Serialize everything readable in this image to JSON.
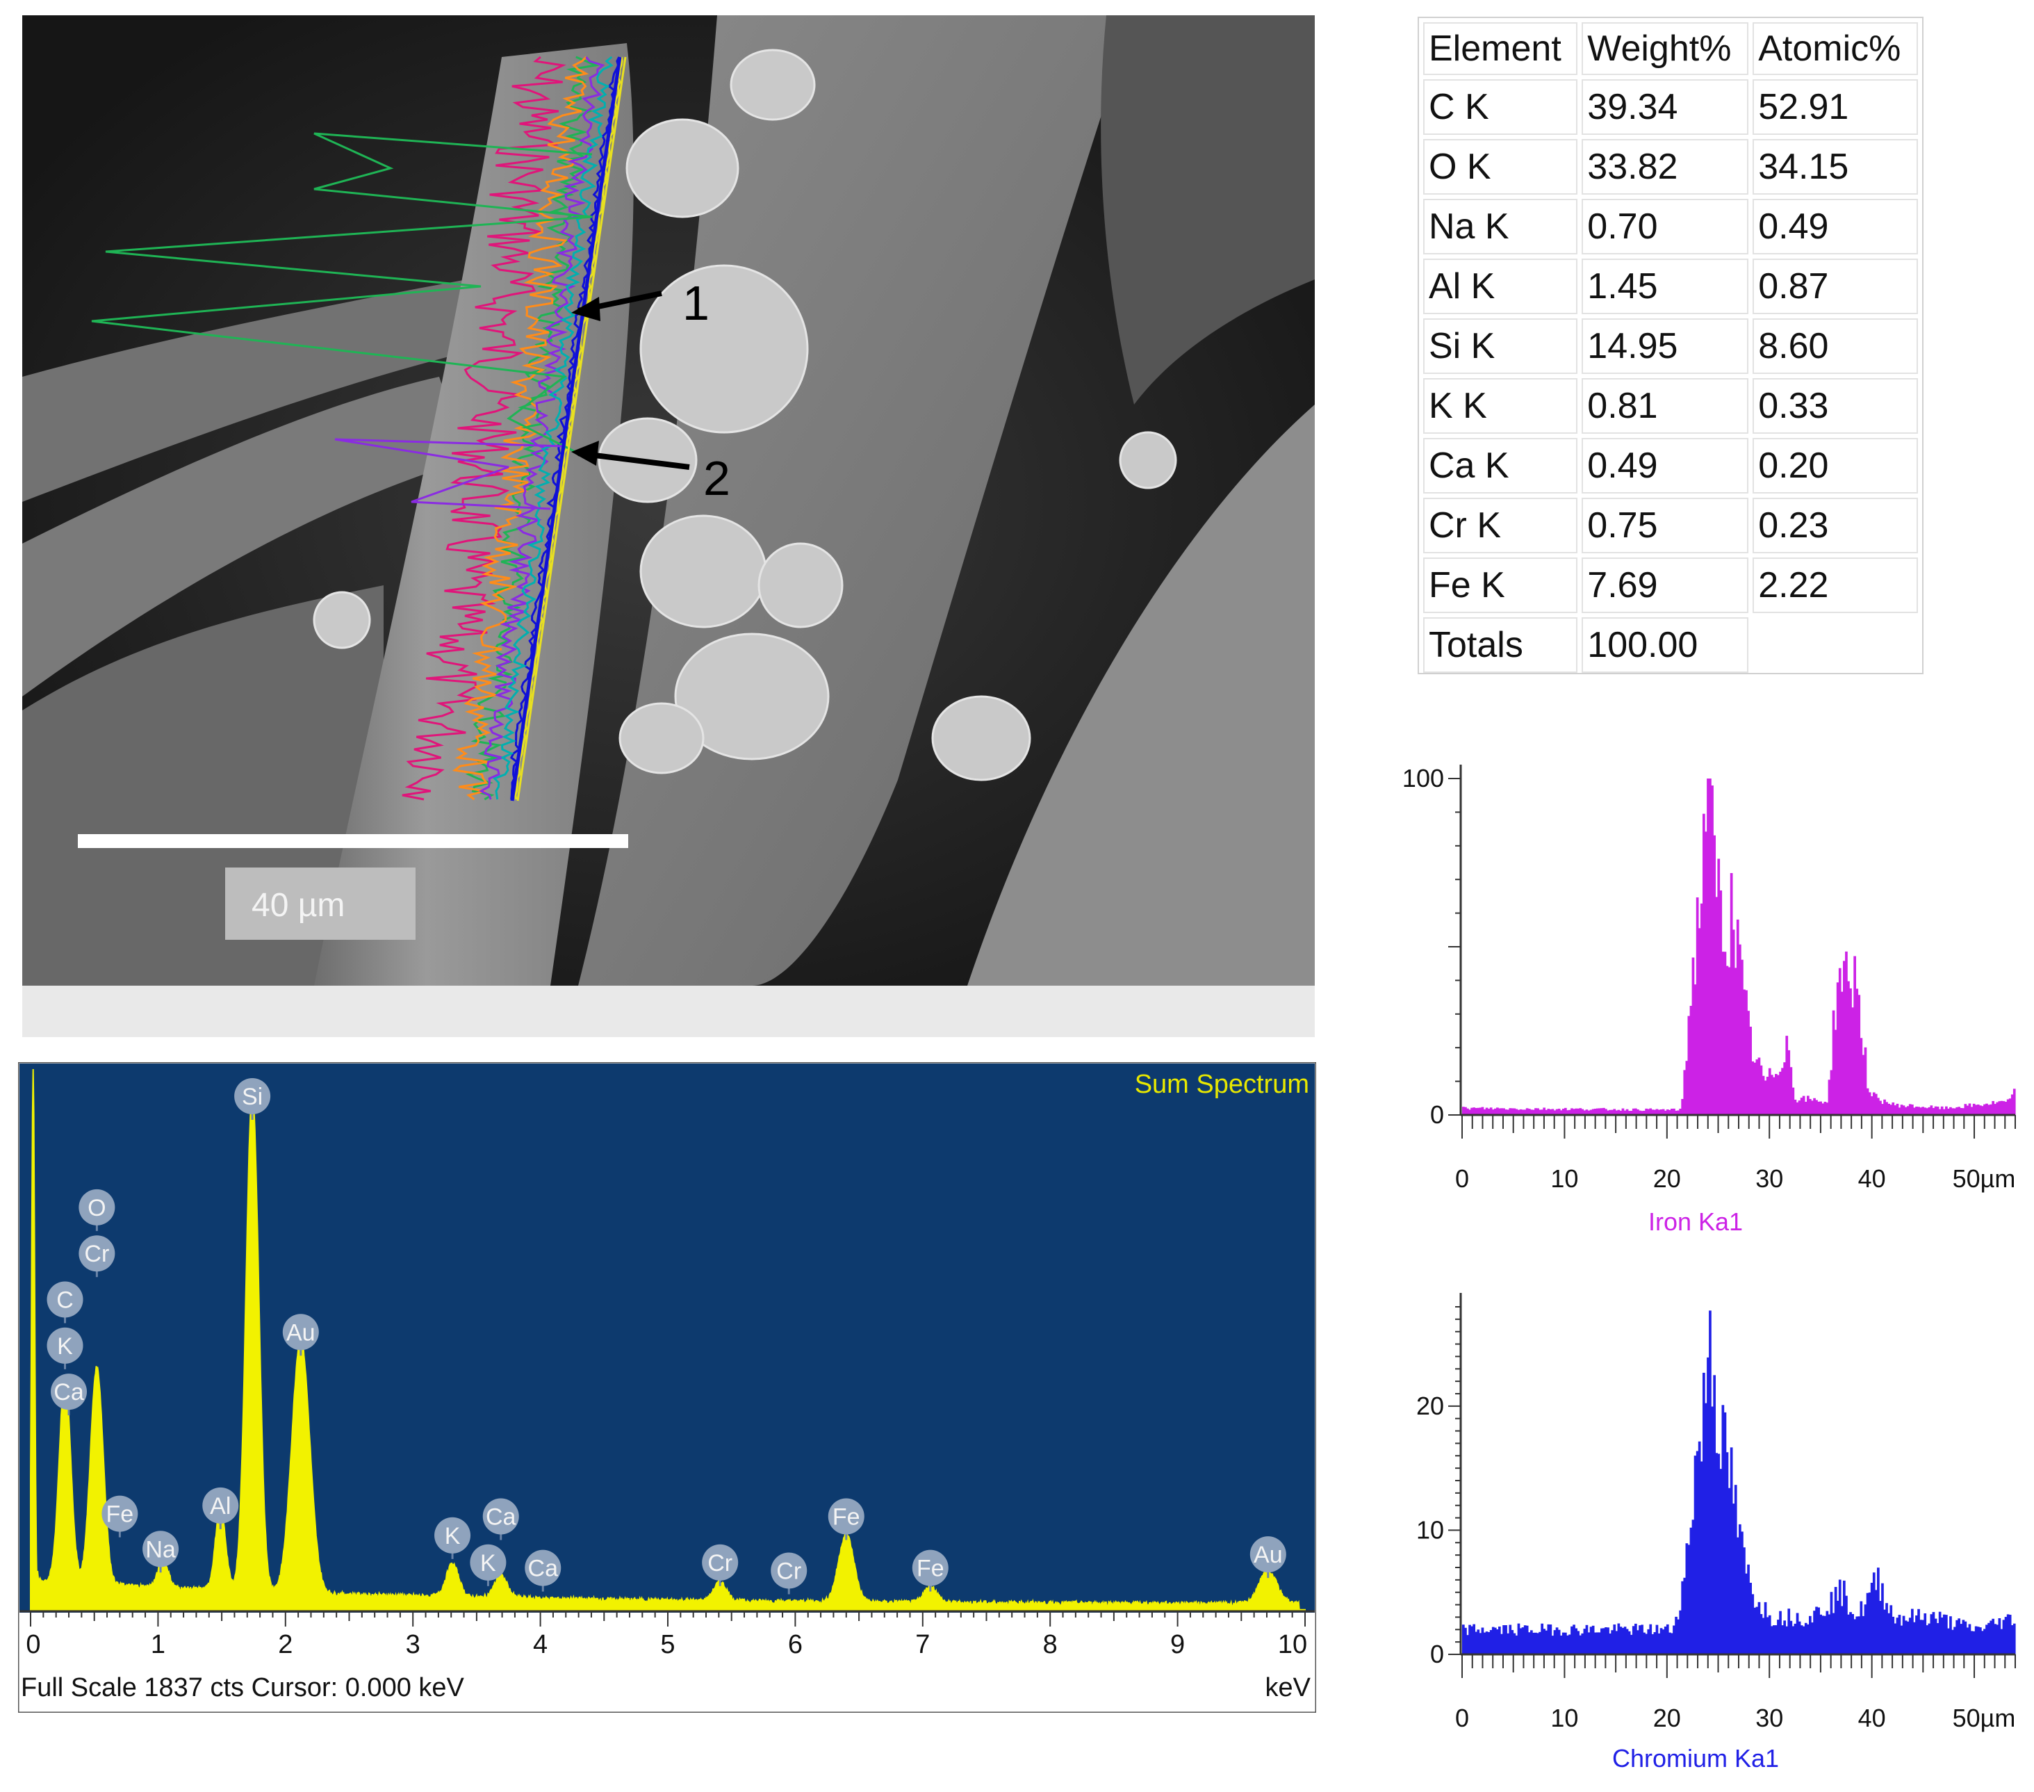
{
  "sem_image": {
    "scale_bar_label": "40 µm",
    "markers": [
      {
        "label": "1"
      },
      {
        "label": "2"
      }
    ],
    "trace_colors": [
      "#e0157a",
      "#1fb455",
      "#1010d8",
      "#ff8c1a",
      "#8a2be2",
      "#00b0b0",
      "#e8e020"
    ]
  },
  "results_table": {
    "columns": [
      "Element",
      "Weight%",
      "Atomic%"
    ],
    "rows": [
      [
        "C K",
        "39.34",
        "52.91"
      ],
      [
        "O K",
        "33.82",
        "34.15"
      ],
      [
        "Na K",
        "0.70",
        "0.49"
      ],
      [
        "Al K",
        "1.45",
        "0.87"
      ],
      [
        "Si K",
        "14.95",
        "8.60"
      ],
      [
        "K K",
        "0.81",
        "0.33"
      ],
      [
        "Ca K",
        "0.49",
        "0.20"
      ],
      [
        "Cr K",
        "0.75",
        "0.23"
      ],
      [
        "Fe K",
        "7.69",
        "2.22"
      ]
    ],
    "totals": [
      "Totals",
      "100.00",
      ""
    ]
  },
  "chart_data": [
    {
      "type": "area",
      "title": "Sum Spectrum",
      "xlabel": "keV",
      "xlim": [
        0,
        10
      ],
      "xticks": [
        "0",
        "1",
        "2",
        "3",
        "4",
        "5",
        "6",
        "7",
        "8",
        "9",
        "10"
      ],
      "footer_left": "Full Scale 1837 cts  Cursor: 0.000 keV",
      "colors": {
        "background": "#0d3a6e",
        "fill": "#f2f200",
        "title": "#e8e800"
      },
      "peaks": [
        {
          "x": 0.02,
          "y": 100
        },
        {
          "x": 0.27,
          "y": 38
        },
        {
          "x": 0.52,
          "y": 40
        },
        {
          "x": 1.04,
          "y": 5
        },
        {
          "x": 1.49,
          "y": 15
        },
        {
          "x": 1.74,
          "y": 92
        },
        {
          "x": 2.12,
          "y": 47
        },
        {
          "x": 3.31,
          "y": 6
        },
        {
          "x": 3.69,
          "y": 4
        },
        {
          "x": 5.41,
          "y": 3.5
        },
        {
          "x": 6.4,
          "y": 12.5
        },
        {
          "x": 7.06,
          "y": 3
        },
        {
          "x": 9.71,
          "y": 6
        }
      ],
      "peak_labels": [
        {
          "text": "Si",
          "x": 1.74,
          "y": 95
        },
        {
          "text": "O",
          "x": 0.52,
          "y": 74.5
        },
        {
          "text": "Cr",
          "x": 0.52,
          "y": 66
        },
        {
          "text": "C",
          "x": 0.27,
          "y": 57.5
        },
        {
          "text": "K",
          "x": 0.27,
          "y": 49
        },
        {
          "text": "Ca",
          "x": 0.3,
          "y": 40.5
        },
        {
          "text": "Au",
          "x": 2.12,
          "y": 51.5
        },
        {
          "text": "Fe",
          "x": 0.7,
          "y": 18
        },
        {
          "text": "Na",
          "x": 1.02,
          "y": 11.5
        },
        {
          "text": "Al",
          "x": 1.49,
          "y": 19.5
        },
        {
          "text": "K",
          "x": 3.31,
          "y": 14
        },
        {
          "text": "Ca",
          "x": 3.69,
          "y": 17.5
        },
        {
          "text": "K",
          "x": 3.59,
          "y": 9
        },
        {
          "text": "Ca",
          "x": 4.02,
          "y": 8
        },
        {
          "text": "Cr",
          "x": 5.41,
          "y": 9
        },
        {
          "text": "Cr",
          "x": 5.95,
          "y": 7.5
        },
        {
          "text": "Fe",
          "x": 6.4,
          "y": 17.5
        },
        {
          "text": "Fe",
          "x": 7.06,
          "y": 8
        },
        {
          "text": "Au",
          "x": 9.71,
          "y": 10.5
        }
      ]
    },
    {
      "type": "bar",
      "series_name": "Iron Ka1",
      "color": "#cc22e6",
      "xlim": [
        0,
        54
      ],
      "ylim": [
        0,
        100
      ],
      "xticks": [
        "0",
        "10",
        "20",
        "30",
        "40",
        "50µm"
      ],
      "yticks": [
        "0",
        "100"
      ],
      "profile": [
        {
          "x": 0,
          "y": 2
        },
        {
          "x": 21.3,
          "y": 1.5
        },
        {
          "x": 22.2,
          "y": 35
        },
        {
          "x": 23.3,
          "y": 70
        },
        {
          "x": 23.6,
          "y": 100
        },
        {
          "x": 24.5,
          "y": 75
        },
        {
          "x": 25.5,
          "y": 52
        },
        {
          "x": 26.3,
          "y": 62
        },
        {
          "x": 27.3,
          "y": 36
        },
        {
          "x": 28.3,
          "y": 18
        },
        {
          "x": 29.5,
          "y": 10
        },
        {
          "x": 30.8,
          "y": 14
        },
        {
          "x": 31.6,
          "y": 22
        },
        {
          "x": 32.4,
          "y": 5
        },
        {
          "x": 35.6,
          "y": 4
        },
        {
          "x": 36.3,
          "y": 32
        },
        {
          "x": 37.0,
          "y": 45
        },
        {
          "x": 37.6,
          "y": 38
        },
        {
          "x": 38.3,
          "y": 42
        },
        {
          "x": 39.0,
          "y": 24
        },
        {
          "x": 39.6,
          "y": 6
        },
        {
          "x": 42.0,
          "y": 3
        },
        {
          "x": 47.0,
          "y": 2
        },
        {
          "x": 53.5,
          "y": 4
        },
        {
          "x": 54.0,
          "y": 13
        }
      ]
    },
    {
      "type": "bar",
      "series_name": "Chromium Ka1",
      "color": "#2020e6",
      "xlim": [
        0,
        54
      ],
      "ylim": [
        0,
        28
      ],
      "xticks": [
        "0",
        "10",
        "20",
        "30",
        "40",
        "50µm"
      ],
      "yticks": [
        "0",
        "10",
        "20"
      ],
      "profile": [
        {
          "x": 0,
          "y": 2
        },
        {
          "x": 20.5,
          "y": 2
        },
        {
          "x": 21.6,
          "y": 6
        },
        {
          "x": 22.5,
          "y": 14
        },
        {
          "x": 23.6,
          "y": 20
        },
        {
          "x": 24.0,
          "y": 28
        },
        {
          "x": 24.6,
          "y": 21
        },
        {
          "x": 25.5,
          "y": 16
        },
        {
          "x": 26.2,
          "y": 14
        },
        {
          "x": 27.0,
          "y": 9
        },
        {
          "x": 28.2,
          "y": 5
        },
        {
          "x": 30.0,
          "y": 3
        },
        {
          "x": 34.0,
          "y": 3
        },
        {
          "x": 37.0,
          "y": 5
        },
        {
          "x": 38.5,
          "y": 3
        },
        {
          "x": 40.5,
          "y": 6
        },
        {
          "x": 42.0,
          "y": 3
        },
        {
          "x": 46.0,
          "y": 3
        },
        {
          "x": 50.0,
          "y": 2
        },
        {
          "x": 54.0,
          "y": 3
        }
      ]
    }
  ]
}
